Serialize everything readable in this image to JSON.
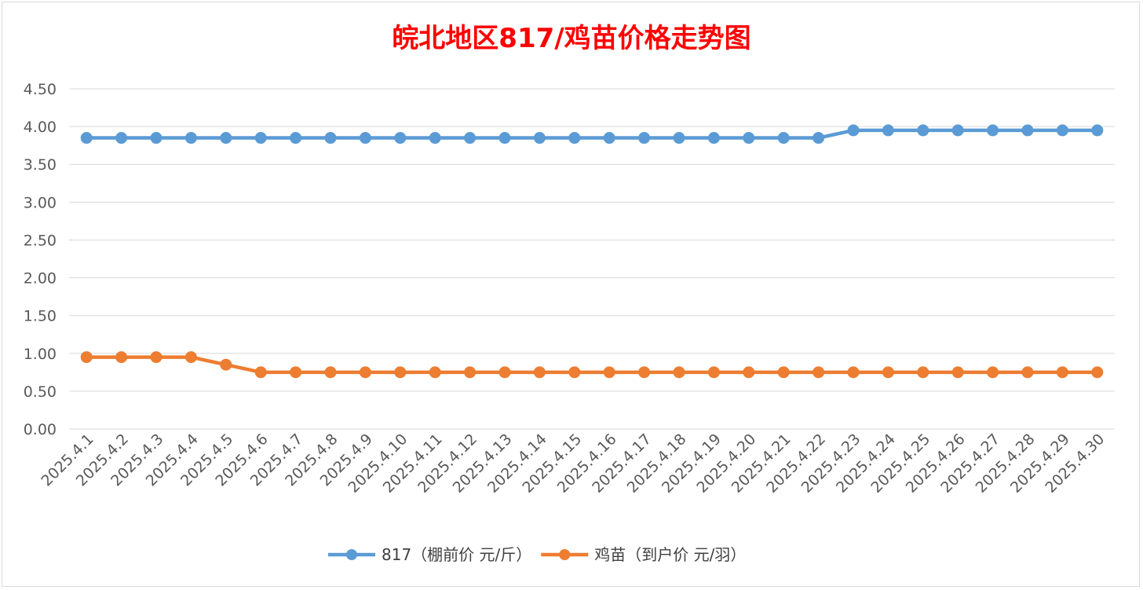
{
  "chart_data": {
    "type": "line",
    "title": "皖北地区817/鸡苗价格走势图",
    "title_color": "#ff0000",
    "xlabel": "",
    "ylabel": "",
    "ylim": [
      0,
      4.5
    ],
    "yticks": [
      "0.00",
      "0.50",
      "1.00",
      "1.50",
      "2.00",
      "2.50",
      "3.00",
      "3.50",
      "4.00",
      "4.50"
    ],
    "grid": true,
    "legend_position": "bottom",
    "categories": [
      "2025.4.1",
      "2025.4.2",
      "2025.4.3",
      "2025.4.4",
      "2025.4.5",
      "2025.4.6",
      "2025.4.7",
      "2025.4.8",
      "2025.4.9",
      "2025.4.10",
      "2025.4.11",
      "2025.4.12",
      "2025.4.13",
      "2025.4.14",
      "2025.4.15",
      "2025.4.16",
      "2025.4.17",
      "2025.4.18",
      "2025.4.19",
      "2025.4.20",
      "2025.4.21",
      "2025.4.22",
      "2025.4.23",
      "2025.4.24",
      "2025.4.25",
      "2025.4.26",
      "2025.4.27",
      "2025.4.28",
      "2025.4.29",
      "2025.4.30"
    ],
    "series": [
      {
        "name": "817（棚前价 元/斤）",
        "color": "#5b9bd5",
        "values": [
          3.85,
          3.85,
          3.85,
          3.85,
          3.85,
          3.85,
          3.85,
          3.85,
          3.85,
          3.85,
          3.85,
          3.85,
          3.85,
          3.85,
          3.85,
          3.85,
          3.85,
          3.85,
          3.85,
          3.85,
          3.85,
          3.85,
          3.95,
          3.95,
          3.95,
          3.95,
          3.95,
          3.95,
          3.95,
          3.95
        ]
      },
      {
        "name": "鸡苗（到户价 元/羽）",
        "color": "#ed7d31",
        "values": [
          0.95,
          0.95,
          0.95,
          0.95,
          0.85,
          0.75,
          0.75,
          0.75,
          0.75,
          0.75,
          0.75,
          0.75,
          0.75,
          0.75,
          0.75,
          0.75,
          0.75,
          0.75,
          0.75,
          0.75,
          0.75,
          0.75,
          0.75,
          0.75,
          0.75,
          0.75,
          0.75,
          0.75,
          0.75,
          0.75
        ]
      }
    ]
  }
}
